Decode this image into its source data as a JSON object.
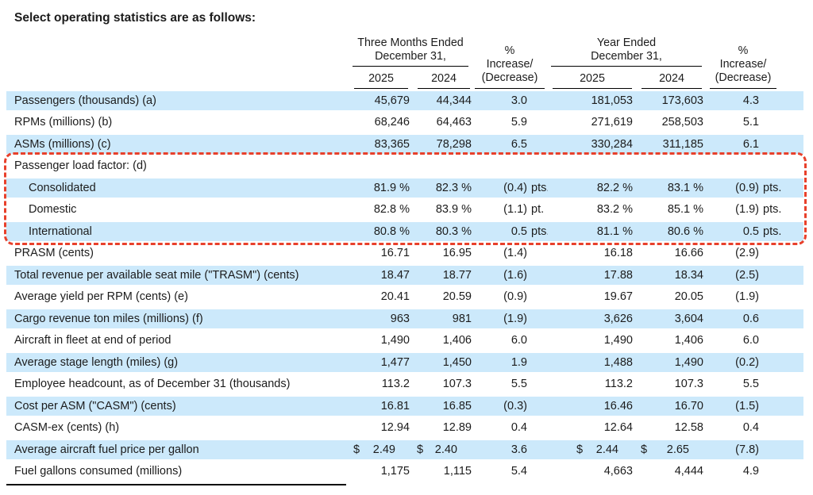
{
  "title": "Select operating statistics are as follows:",
  "header": {
    "group_three_months": {
      "line1": "Three Months Ended",
      "line2": "December 31,"
    },
    "group_year_ended": {
      "line1": "Year Ended",
      "line2": "December 31,"
    },
    "pct_change": {
      "line1": "%",
      "line2": "Increase/",
      "line3": "(Decrease)"
    },
    "years": [
      "2025",
      "2024"
    ]
  },
  "annotation": {
    "style": "dashed-box",
    "color": "#e8402b",
    "rows_from": 3,
    "rows_to": 6
  },
  "colors": {
    "row_highlight": "#cce9fb",
    "text": "#1c1c1c"
  },
  "rows": [
    {
      "label": "Passengers (thousands) (a)",
      "indent": false,
      "cells": [
        {
          "v": "45,679"
        },
        {
          "v": "44,344"
        },
        {
          "v": "3.0"
        },
        {
          "v": "181,053"
        },
        {
          "v": "173,603"
        },
        {
          "v": "4.3"
        }
      ]
    },
    {
      "label": "RPMs (millions) (b)",
      "indent": false,
      "cells": [
        {
          "v": "68,246"
        },
        {
          "v": "64,463"
        },
        {
          "v": "5.9"
        },
        {
          "v": "271,619"
        },
        {
          "v": "258,503"
        },
        {
          "v": "5.1"
        }
      ]
    },
    {
      "label": "ASMs (millions) (c)",
      "indent": false,
      "cells": [
        {
          "v": "83,365"
        },
        {
          "v": "78,298"
        },
        {
          "v": "6.5"
        },
        {
          "v": "330,284"
        },
        {
          "v": "311,185"
        },
        {
          "v": "6.1"
        }
      ]
    },
    {
      "label": "Passenger load factor: (d)",
      "indent": false,
      "cells": []
    },
    {
      "label": "Consolidated",
      "indent": true,
      "cells": [
        {
          "v": "81.9 %"
        },
        {
          "v": "82.3 %"
        },
        {
          "v": "(0.4)",
          "s": "pts."
        },
        {
          "v": "82.2 %"
        },
        {
          "v": "83.1 %"
        },
        {
          "v": "(0.9)",
          "s": "pts."
        }
      ]
    },
    {
      "label": "Domestic",
      "indent": true,
      "cells": [
        {
          "v": "82.8 %"
        },
        {
          "v": "83.9 %"
        },
        {
          "v": "(1.1)",
          "s": "pt."
        },
        {
          "v": "83.2 %"
        },
        {
          "v": "85.1 %"
        },
        {
          "v": "(1.9)",
          "s": "pts."
        }
      ]
    },
    {
      "label": "International",
      "indent": true,
      "cells": [
        {
          "v": "80.8 %"
        },
        {
          "v": "80.3 %"
        },
        {
          "v": "0.5",
          "s": "pts."
        },
        {
          "v": "81.1 %"
        },
        {
          "v": "80.6 %"
        },
        {
          "v": "0.5",
          "s": "pts."
        }
      ]
    },
    {
      "label": "PRASM (cents)",
      "indent": false,
      "cells": [
        {
          "v": "16.71"
        },
        {
          "v": "16.95"
        },
        {
          "v": "(1.4)"
        },
        {
          "v": "16.18"
        },
        {
          "v": "16.66"
        },
        {
          "v": "(2.9)"
        }
      ]
    },
    {
      "label": "Total revenue per available seat mile (\"TRASM\") (cents)",
      "indent": false,
      "cells": [
        {
          "v": "18.47"
        },
        {
          "v": "18.77"
        },
        {
          "v": "(1.6)"
        },
        {
          "v": "17.88"
        },
        {
          "v": "18.34"
        },
        {
          "v": "(2.5)"
        }
      ]
    },
    {
      "label": "Average yield per RPM (cents) (e)",
      "indent": false,
      "cells": [
        {
          "v": "20.41"
        },
        {
          "v": "20.59"
        },
        {
          "v": "(0.9)"
        },
        {
          "v": "19.67"
        },
        {
          "v": "20.05"
        },
        {
          "v": "(1.9)"
        }
      ]
    },
    {
      "label": "Cargo revenue ton miles (millions) (f)",
      "indent": false,
      "cells": [
        {
          "v": "963"
        },
        {
          "v": "981"
        },
        {
          "v": "(1.9)"
        },
        {
          "v": "3,626"
        },
        {
          "v": "3,604"
        },
        {
          "v": "0.6"
        }
      ]
    },
    {
      "label": "Aircraft in fleet at end of period",
      "indent": false,
      "cells": [
        {
          "v": "1,490"
        },
        {
          "v": "1,406"
        },
        {
          "v": "6.0"
        },
        {
          "v": "1,490"
        },
        {
          "v": "1,406"
        },
        {
          "v": "6.0"
        }
      ]
    },
    {
      "label": "Average stage length (miles) (g)",
      "indent": false,
      "cells": [
        {
          "v": "1,477"
        },
        {
          "v": "1,450"
        },
        {
          "v": "1.9"
        },
        {
          "v": "1,488"
        },
        {
          "v": "1,490"
        },
        {
          "v": "(0.2)"
        }
      ]
    },
    {
      "label": "Employee headcount, as of December 31 (thousands)",
      "indent": false,
      "cells": [
        {
          "v": "113.2"
        },
        {
          "v": "107.3"
        },
        {
          "v": "5.5"
        },
        {
          "v": "113.2"
        },
        {
          "v": "107.3"
        },
        {
          "v": "5.5"
        }
      ]
    },
    {
      "label": "Cost per ASM (\"CASM\") (cents)",
      "indent": false,
      "cells": [
        {
          "v": "16.81"
        },
        {
          "v": "16.85"
        },
        {
          "v": "(0.3)"
        },
        {
          "v": "16.46"
        },
        {
          "v": "16.70"
        },
        {
          "v": "(1.5)"
        }
      ]
    },
    {
      "label": "CASM-ex (cents) (h)",
      "indent": false,
      "cells": [
        {
          "v": "12.94"
        },
        {
          "v": "12.89"
        },
        {
          "v": "0.4"
        },
        {
          "v": "12.64"
        },
        {
          "v": "12.58"
        },
        {
          "v": "0.4"
        }
      ]
    },
    {
      "label": "Average aircraft fuel price per gallon",
      "indent": false,
      "cells": [
        {
          "p": "$",
          "v": "2.49"
        },
        {
          "p": "$",
          "v": "2.40"
        },
        {
          "v": "3.6"
        },
        {
          "p": "$",
          "v": "2.44"
        },
        {
          "p": "$",
          "v": "2.65"
        },
        {
          "v": "(7.8)"
        }
      ]
    },
    {
      "label": "Fuel gallons consumed (millions)",
      "indent": false,
      "cells": [
        {
          "v": "1,175"
        },
        {
          "v": "1,115"
        },
        {
          "v": "5.4"
        },
        {
          "v": "4,663"
        },
        {
          "v": "4,444"
        },
        {
          "v": "4.9"
        }
      ]
    }
  ]
}
